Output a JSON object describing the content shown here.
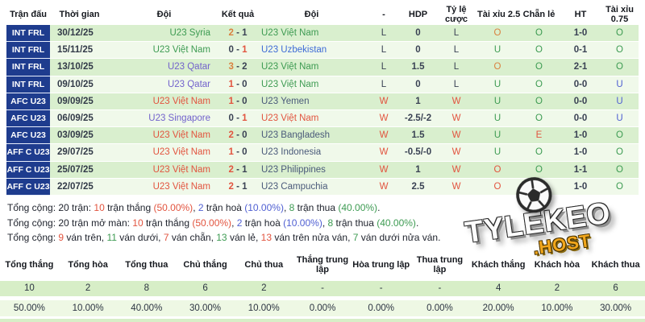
{
  "palette": {
    "green": "#3d9b52",
    "red": "#e2543f",
    "orange": "#d9813f",
    "navy": "#3a4254",
    "purple": "#7262cc",
    "blue": "#3e6bd6",
    "navyTeam": "#4a5a7a",
    "blueU": "#4f5fd2",
    "dark": "#20242e",
    "row_dark_bg": "#d9efce",
    "row_light_bg": "#f0f9ea",
    "competition_col_bg": "#1e3c8e",
    "stats_counts_bg": "#d7eec7",
    "stats_pcts_bg": "#eef8e4",
    "brand_gold": "#f2a71b"
  },
  "table": {
    "headers": [
      "Trận đấu",
      "Thời gian",
      "Đội",
      "Kết quả",
      "Đội",
      "-",
      "HDP",
      "Tỷ lệ\ncược",
      "Tài xỉu 2.5",
      "Chẵn lẻ",
      "HT",
      "Tài xỉu\n0.75"
    ],
    "rows": [
      {
        "comp": "INT FRL",
        "date": "30/12/25",
        "home": "U23 Syria",
        "hc": "green",
        "s1": "2",
        "s1c": "orange",
        "s2": "1",
        "s2c": "navy",
        "away": "U23 Việt Nam",
        "ac": "green",
        "res": "L",
        "resc": "navy",
        "hdp": "0",
        "tlc": "L",
        "tlcc": "navy",
        "tx25": "O",
        "tx25c": "orange",
        "cl": "O",
        "clc": "green",
        "ht": "1-0",
        "tx075": "O",
        "tx075c": "green"
      },
      {
        "comp": "INT FRL",
        "date": "15/11/25",
        "home": "U23 Việt Nam",
        "hc": "green",
        "s1": "0",
        "s1c": "navy",
        "s2": "1",
        "s2c": "red",
        "away": "U23 Uzbekistan",
        "ac": "blue",
        "res": "L",
        "resc": "navy",
        "hdp": "0",
        "tlc": "L",
        "tlcc": "navy",
        "tx25": "U",
        "tx25c": "green",
        "cl": "O",
        "clc": "green",
        "ht": "0-1",
        "tx075": "O",
        "tx075c": "green"
      },
      {
        "comp": "INT FRL",
        "date": "13/10/25",
        "home": "U23 Qatar",
        "hc": "purple",
        "s1": "3",
        "s1c": "orange",
        "s2": "2",
        "s2c": "navy",
        "away": "U23 Việt Nam",
        "ac": "green",
        "res": "L",
        "resc": "navy",
        "hdp": "1.5",
        "tlc": "L",
        "tlcc": "navy",
        "tx25": "O",
        "tx25c": "orange",
        "cl": "O",
        "clc": "green",
        "ht": "2-1",
        "tx075": "O",
        "tx075c": "green"
      },
      {
        "comp": "INT FRL",
        "date": "09/10/25",
        "home": "U23 Qatar",
        "hc": "purple",
        "s1": "1",
        "s1c": "red",
        "s2": "0",
        "s2c": "navy",
        "away": "U23 Việt Nam",
        "ac": "green",
        "res": "L",
        "resc": "navy",
        "hdp": "0",
        "tlc": "L",
        "tlcc": "navy",
        "tx25": "U",
        "tx25c": "green",
        "cl": "O",
        "clc": "green",
        "ht": "0-0",
        "tx075": "U",
        "tx075c": "blueU"
      },
      {
        "comp": "AFC U23",
        "date": "09/09/25",
        "home": "U23 Việt Nam",
        "hc": "red",
        "s1": "1",
        "s1c": "red",
        "s2": "0",
        "s2c": "navy",
        "away": "U23 Yemen",
        "ac": "navyTeam",
        "res": "W",
        "resc": "red",
        "hdp": "1",
        "tlc": "W",
        "tlcc": "red",
        "tx25": "U",
        "tx25c": "green",
        "cl": "O",
        "clc": "green",
        "ht": "0-0",
        "tx075": "U",
        "tx075c": "blueU"
      },
      {
        "comp": "AFC U23",
        "date": "06/09/25",
        "home": "U23 Singapore",
        "hc": "purple",
        "s1": "0",
        "s1c": "navy",
        "s2": "1",
        "s2c": "red",
        "away": "U23 Việt Nam",
        "ac": "red",
        "res": "W",
        "resc": "red",
        "hdp": "-2.5/-2",
        "tlc": "W",
        "tlcc": "red",
        "tx25": "U",
        "tx25c": "green",
        "cl": "O",
        "clc": "green",
        "ht": "0-0",
        "tx075": "U",
        "tx075c": "blueU"
      },
      {
        "comp": "AFC U23",
        "date": "03/09/25",
        "home": "U23 Việt Nam",
        "hc": "red",
        "s1": "2",
        "s1c": "red",
        "s2": "0",
        "s2c": "navy",
        "away": "U23 Bangladesh",
        "ac": "navyTeam",
        "res": "W",
        "resc": "red",
        "hdp": "1.5",
        "tlc": "W",
        "tlcc": "red",
        "tx25": "U",
        "tx25c": "green",
        "cl": "E",
        "clc": "red",
        "ht": "1-0",
        "tx075": "O",
        "tx075c": "green"
      },
      {
        "comp": "AFF C U23",
        "date": "29/07/25",
        "home": "U23 Việt Nam",
        "hc": "red",
        "s1": "1",
        "s1c": "red",
        "s2": "0",
        "s2c": "navy",
        "away": "U23 Indonesia",
        "ac": "navyTeam",
        "res": "W",
        "resc": "red",
        "hdp": "-0.5/-0",
        "tlc": "W",
        "tlcc": "red",
        "tx25": "U",
        "tx25c": "green",
        "cl": "O",
        "clc": "green",
        "ht": "1-0",
        "tx075": "O",
        "tx075c": "green"
      },
      {
        "comp": "AFF C U23",
        "date": "25/07/25",
        "home": "U23 Việt Nam",
        "hc": "red",
        "s1": "2",
        "s1c": "red",
        "s2": "1",
        "s2c": "navy",
        "away": "U23 Philippines",
        "ac": "navyTeam",
        "res": "W",
        "resc": "red",
        "hdp": "1",
        "tlc": "W",
        "tlcc": "red",
        "tx25": "O",
        "tx25c": "red",
        "cl": "O",
        "clc": "green",
        "ht": "1-1",
        "tx075": "O",
        "tx075c": "green"
      },
      {
        "comp": "AFF C U23",
        "date": "22/07/25",
        "home": "U23 Việt Nam",
        "hc": "red",
        "s1": "2",
        "s1c": "red",
        "s2": "1",
        "s2c": "navy",
        "away": "U23 Campuchia",
        "ac": "navyTeam",
        "res": "W",
        "resc": "red",
        "hdp": "2.5",
        "tlc": "W",
        "tlcc": "red",
        "tx25": "O",
        "tx25c": "red",
        "cl": "O",
        "clc": "green",
        "ht": "1-0",
        "tx075": "O",
        "tx075c": "green"
      }
    ]
  },
  "summary": [
    [
      [
        "Tổng cộng: 20 trận: ",
        "dark"
      ],
      [
        "10",
        "red"
      ],
      [
        " trận thắng ",
        "dark"
      ],
      [
        "(50.00%)",
        "red"
      ],
      [
        ", ",
        "dark"
      ],
      [
        "2",
        "blueU"
      ],
      [
        " trận hoà ",
        "dark"
      ],
      [
        "(10.00%)",
        "blueU"
      ],
      [
        ", ",
        "dark"
      ],
      [
        "8",
        "green"
      ],
      [
        " trận thua ",
        "dark"
      ],
      [
        "(40.00%)",
        "green"
      ],
      [
        ".",
        "dark"
      ]
    ],
    [
      [
        "Tổng cộng: 20 trận mở màn: ",
        "dark"
      ],
      [
        "10",
        "red"
      ],
      [
        " trận thắng ",
        "dark"
      ],
      [
        "(50.00%)",
        "red"
      ],
      [
        ", ",
        "dark"
      ],
      [
        "2",
        "blueU"
      ],
      [
        " trận hoà ",
        "dark"
      ],
      [
        "(10.00%)",
        "blueU"
      ],
      [
        ", ",
        "dark"
      ],
      [
        "8",
        "green"
      ],
      [
        " trận thua ",
        "dark"
      ],
      [
        "(40.00%)",
        "green"
      ],
      [
        ".",
        "dark"
      ]
    ],
    [
      [
        "Tổng cộng: ",
        "dark"
      ],
      [
        "9",
        "red"
      ],
      [
        " ván trên, ",
        "dark"
      ],
      [
        "11",
        "green"
      ],
      [
        " ván dưới, ",
        "dark"
      ],
      [
        "7",
        "red"
      ],
      [
        " ván chẵn, ",
        "dark"
      ],
      [
        "13",
        "green"
      ],
      [
        " ván lẻ, ",
        "dark"
      ],
      [
        "13",
        "red"
      ],
      [
        " ván trên nửa ván, ",
        "dark"
      ],
      [
        "7",
        "green"
      ],
      [
        " ván dưới nửa ván.",
        "dark"
      ]
    ]
  ],
  "watermark": {
    "brand": "TYLEKEO",
    "tld": ".HOST"
  },
  "stats": {
    "headers": [
      "Tổng thắng",
      "Tổng hòa",
      "Tổng thua",
      "Chủ thắng",
      "Chủ thua",
      "Thắng trung\nlập",
      "Hòa trung lập",
      "Thua trung\nlập",
      "Khách thắng",
      "Khách hòa",
      "Khách thua"
    ],
    "counts": [
      "10",
      "2",
      "8",
      "6",
      "2",
      "-",
      "-",
      "-",
      "4",
      "2",
      "6"
    ],
    "percents": [
      "50.00%",
      "10.00%",
      "40.00%",
      "30.00%",
      "10.00%",
      "0.00%",
      "0.00%",
      "0.00%",
      "20.00%",
      "10.00%",
      "30.00%"
    ]
  }
}
